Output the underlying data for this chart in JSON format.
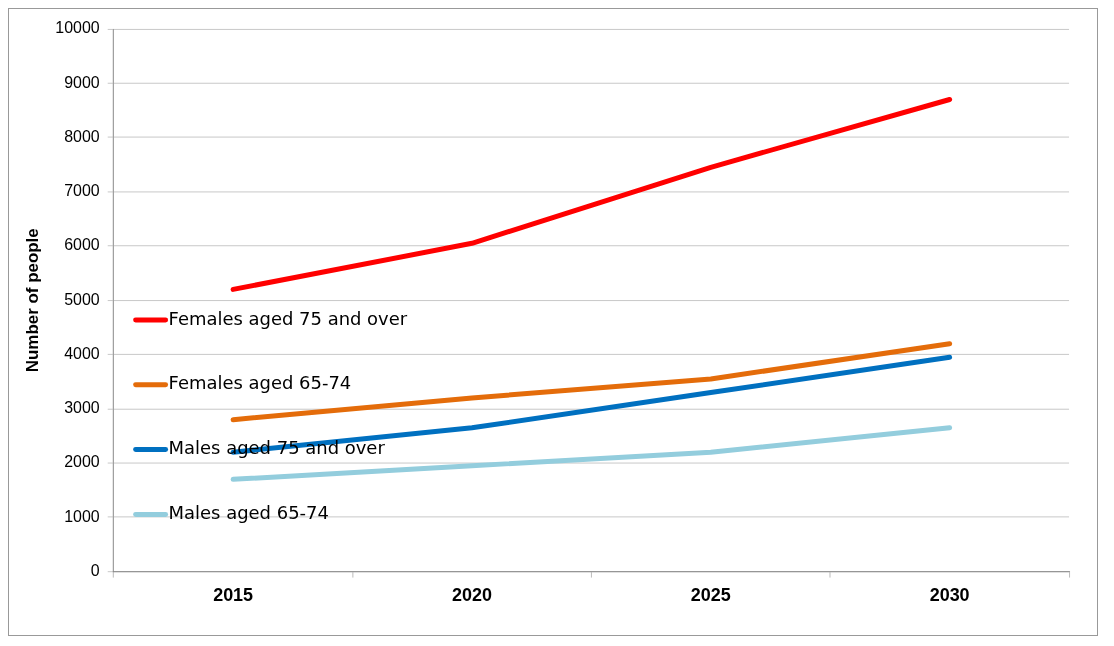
{
  "chart_data": {
    "type": "line",
    "ylabel": "Number of people",
    "categories": [
      "2015",
      "2020",
      "2025",
      "2030"
    ],
    "series": [
      {
        "name": "Females aged 75 and over",
        "color": "#ff0000",
        "values": [
          5200,
          6050,
          7450,
          8700
        ]
      },
      {
        "name": "Females aged 65-74",
        "color": "#e46c0a",
        "values": [
          2800,
          3200,
          3550,
          4200
        ]
      },
      {
        "name": "Males aged 75 and over",
        "color": "#0070c0",
        "values": [
          2200,
          2650,
          3300,
          3950
        ]
      },
      {
        "name": "Males aged 65-74",
        "color": "#93cddd",
        "values": [
          1700,
          1950,
          2200,
          2650
        ]
      }
    ],
    "ylim": [
      0,
      10000
    ],
    "yticks": [
      0,
      1000,
      2000,
      3000,
      4000,
      5000,
      6000,
      7000,
      8000,
      9000,
      10000
    ],
    "grid": "y",
    "legend": "left",
    "marker": "none",
    "line_style": "solid"
  }
}
